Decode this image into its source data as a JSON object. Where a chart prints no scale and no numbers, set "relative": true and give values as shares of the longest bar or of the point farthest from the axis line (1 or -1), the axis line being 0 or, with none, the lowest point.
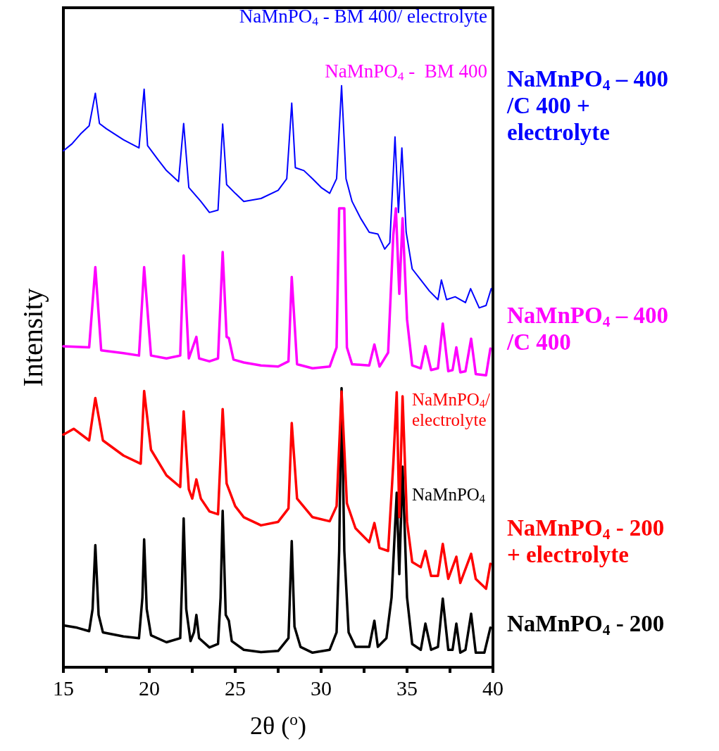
{
  "chart_data": {
    "type": "line",
    "relative": true,
    "xlabel": "2θ ($^{o}$)",
    "ylabel": "Intensity",
    "xlim": [
      15,
      40
    ],
    "xticks": [
      15,
      {
        "value": 17.5,
        "label": null
      },
      20,
      {
        "value": 22.5,
        "label": null
      },
      25,
      {
        "value": 27.5,
        "label": null
      },
      30,
      {
        "value": 32.5,
        "label": null
      },
      35,
      {
        "value": 37.5,
        "label": null
      },
      40
    ],
    "legend": false,
    "grid": false,
    "annotations": [
      "NaMnPO$_{4}$ - BM 400/ electrolyte",
      "NaMnPO$_{4}$ -  BM 400",
      "NaMnPO$_{4}$/\nelectrolyte",
      "NaMnPO$_{4}$"
    ],
    "series": [
      {
        "name": "NaMnPO$_{4}$ – 400\n/C 400 +\nelectrolyte",
        "color": "#0000ff",
        "x": [
          15.0,
          15.5,
          16.0,
          16.5,
          16.86,
          17.1,
          17.5,
          18.5,
          19.4,
          19.7,
          19.9,
          20.5,
          21.0,
          21.7,
          22.0,
          22.3,
          23.0,
          23.5,
          24.0,
          24.27,
          24.5,
          25.0,
          25.5,
          26.5,
          27.5,
          28.0,
          28.29,
          28.5,
          29.0,
          29.5,
          30.0,
          30.5,
          30.9,
          31.19,
          31.45,
          31.8,
          32.3,
          32.8,
          33.3,
          33.7,
          34.0,
          34.3,
          34.5,
          34.7,
          34.95,
          35.3,
          35.8,
          36.3,
          36.8,
          37.0,
          37.3,
          37.8,
          38.4,
          38.7,
          39.2,
          39.6,
          39.9
        ],
        "values": [
          0.888,
          0.9,
          0.917,
          0.931,
          0.987,
          0.935,
          0.926,
          0.907,
          0.893,
          0.994,
          0.897,
          0.873,
          0.854,
          0.835,
          0.935,
          0.825,
          0.801,
          0.782,
          0.786,
          0.934,
          0.83,
          0.815,
          0.801,
          0.806,
          0.82,
          0.84,
          0.97,
          0.859,
          0.854,
          0.84,
          0.825,
          0.815,
          0.84,
          1.0,
          0.84,
          0.801,
          0.772,
          0.748,
          0.745,
          0.719,
          0.73,
          0.912,
          0.782,
          0.893,
          0.748,
          0.685,
          0.666,
          0.647,
          0.632,
          0.666,
          0.632,
          0.637,
          0.627,
          0.651,
          0.618,
          0.622,
          0.651
        ]
      },
      {
        "name": "NaMnPO$_{4}$ – 400\n/C 400",
        "color": "#ff00ff",
        "x": [
          15.0,
          16.5,
          16.86,
          17.2,
          18.5,
          19.4,
          19.7,
          20.1,
          21.0,
          21.8,
          22.0,
          22.3,
          22.74,
          22.9,
          23.5,
          24.0,
          24.27,
          24.5,
          24.63,
          24.9,
          25.5,
          26.5,
          27.5,
          28.1,
          28.29,
          28.6,
          29.5,
          30.5,
          30.9,
          31.05,
          31.19,
          31.35,
          31.5,
          31.8,
          32.8,
          33.1,
          33.4,
          33.9,
          34.2,
          34.35,
          34.55,
          34.74,
          35.0,
          35.3,
          35.8,
          36.07,
          36.4,
          36.8,
          37.08,
          37.4,
          37.65,
          37.87,
          38.1,
          38.4,
          38.73,
          39.0,
          39.6,
          39.85
        ],
        "values": [
          0.552,
          0.55,
          0.688,
          0.545,
          0.54,
          0.536,
          0.688,
          0.536,
          0.531,
          0.536,
          0.708,
          0.531,
          0.568,
          0.531,
          0.526,
          0.531,
          0.714,
          0.568,
          0.566,
          0.529,
          0.524,
          0.519,
          0.517,
          0.526,
          0.671,
          0.521,
          0.514,
          0.517,
          0.55,
          0.789,
          0.789,
          0.789,
          0.55,
          0.521,
          0.519,
          0.555,
          0.517,
          0.541,
          0.743,
          0.789,
          0.642,
          0.772,
          0.598,
          0.519,
          0.514,
          0.552,
          0.511,
          0.514,
          0.591,
          0.509,
          0.511,
          0.55,
          0.507,
          0.509,
          0.565,
          0.504,
          0.502,
          0.548
        ]
      },
      {
        "name": "NaMnPO$_{4}$ - 200\n+ electrolyte",
        "color": "#ff0000",
        "x": [
          15.0,
          15.6,
          16.5,
          16.86,
          17.3,
          18.5,
          19.5,
          19.7,
          20.1,
          21.0,
          21.8,
          22.0,
          22.3,
          22.5,
          22.74,
          23.0,
          23.5,
          24.0,
          24.27,
          24.5,
          25.0,
          25.5,
          26.5,
          27.5,
          28.1,
          28.29,
          28.6,
          29.5,
          30.5,
          30.9,
          31.19,
          31.5,
          32.0,
          32.8,
          33.1,
          33.4,
          33.9,
          34.2,
          34.4,
          34.55,
          34.74,
          35.0,
          35.3,
          35.8,
          36.07,
          36.4,
          36.8,
          37.08,
          37.4,
          37.87,
          38.1,
          38.73,
          39.0,
          39.6,
          39.85
        ],
        "values": [
          0.4,
          0.41,
          0.39,
          0.463,
          0.39,
          0.364,
          0.35,
          0.475,
          0.374,
          0.33,
          0.31,
          0.44,
          0.306,
          0.29,
          0.323,
          0.29,
          0.268,
          0.263,
          0.444,
          0.316,
          0.277,
          0.258,
          0.244,
          0.25,
          0.273,
          0.42,
          0.29,
          0.258,
          0.251,
          0.277,
          0.474,
          0.282,
          0.239,
          0.215,
          0.248,
          0.205,
          0.2,
          0.35,
          0.473,
          0.258,
          0.466,
          0.25,
          0.181,
          0.172,
          0.2,
          0.157,
          0.157,
          0.212,
          0.152,
          0.19,
          0.145,
          0.195,
          0.152,
          0.135,
          0.178
        ]
      },
      {
        "name": "NaMnPO$_{4}$ - 200",
        "color": "#000000",
        "x": [
          15.0,
          15.8,
          16.5,
          16.7,
          16.86,
          17.05,
          17.3,
          18.5,
          19.4,
          19.6,
          19.7,
          19.85,
          20.1,
          21.0,
          21.8,
          21.9,
          22.0,
          22.15,
          22.4,
          22.6,
          22.74,
          22.9,
          23.5,
          24.0,
          24.15,
          24.27,
          24.45,
          24.63,
          24.8,
          25.5,
          26.5,
          27.5,
          28.1,
          28.29,
          28.45,
          28.8,
          29.5,
          30.5,
          30.9,
          31.05,
          31.19,
          31.35,
          31.6,
          32.0,
          32.8,
          33.1,
          33.3,
          33.8,
          34.1,
          34.4,
          34.55,
          34.74,
          35.0,
          35.3,
          35.8,
          36.07,
          36.4,
          36.8,
          37.08,
          37.4,
          37.65,
          37.87,
          38.1,
          38.4,
          38.73,
          39.0,
          39.5,
          39.85
        ],
        "values": [
          0.072,
          0.068,
          0.062,
          0.1,
          0.21,
          0.09,
          0.06,
          0.053,
          0.05,
          0.12,
          0.22,
          0.1,
          0.055,
          0.043,
          0.05,
          0.14,
          0.256,
          0.1,
          0.045,
          0.06,
          0.09,
          0.05,
          0.034,
          0.04,
          0.12,
          0.269,
          0.09,
          0.08,
          0.045,
          0.03,
          0.026,
          0.028,
          0.05,
          0.217,
          0.07,
          0.035,
          0.025,
          0.03,
          0.06,
          0.2,
          0.48,
          0.2,
          0.06,
          0.035,
          0.035,
          0.08,
          0.035,
          0.05,
          0.12,
          0.3,
          0.16,
          0.345,
          0.12,
          0.04,
          0.03,
          0.075,
          0.03,
          0.035,
          0.118,
          0.03,
          0.03,
          0.075,
          0.025,
          0.03,
          0.092,
          0.025,
          0.025,
          0.068
        ]
      }
    ]
  }
}
